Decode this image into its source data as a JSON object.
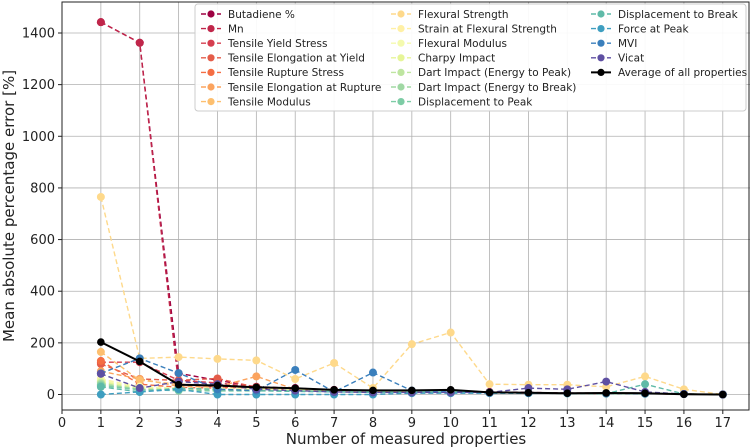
{
  "chart_data": {
    "type": "line",
    "title": "",
    "xlabel": "Number of measured properties",
    "ylabel": "Mean absolute percentage error [%]",
    "xlim": [
      0,
      17.7
    ],
    "ylim": [
      -60,
      1520
    ],
    "xticks": [
      0,
      1,
      2,
      3,
      4,
      5,
      6,
      7,
      8,
      9,
      10,
      11,
      12,
      13,
      14,
      15,
      16,
      17
    ],
    "yticks": [
      0,
      200,
      400,
      600,
      800,
      1000,
      1200,
      1400
    ],
    "grid": true,
    "legend_position": "top-right",
    "x": [
      1,
      2,
      3,
      4,
      5,
      6,
      7,
      8,
      9,
      10,
      11,
      12,
      13,
      14,
      15,
      16,
      17
    ],
    "series": [
      {
        "name": "Butadiene %",
        "color": "#9e0142",
        "values": [
          1442,
          1362,
          82,
          55,
          30,
          25,
          18,
          15,
          14,
          14,
          10,
          8,
          6,
          5,
          4,
          2,
          0
        ]
      },
      {
        "name": "Mn",
        "color": "#c0264a",
        "values": [
          1442,
          1362,
          40,
          30,
          25,
          20,
          15,
          12,
          10,
          10,
          8,
          6,
          5,
          4,
          3,
          2,
          0
        ]
      },
      {
        "name": "Tensile Yield Stress",
        "color": "#d53e4f",
        "values": [
          125,
          125,
          55,
          45,
          28,
          22,
          15,
          12,
          10,
          10,
          8,
          6,
          5,
          4,
          3,
          2,
          0
        ]
      },
      {
        "name": "Tensile Elongation at Yield",
        "color": "#e45c49",
        "values": [
          118,
          60,
          55,
          62,
          28,
          22,
          15,
          12,
          10,
          10,
          8,
          6,
          5,
          4,
          3,
          2,
          0
        ]
      },
      {
        "name": "Tensile Rupture Stress",
        "color": "#f46d43",
        "values": [
          130,
          40,
          28,
          25,
          28,
          20,
          15,
          12,
          10,
          10,
          8,
          6,
          5,
          4,
          3,
          2,
          0
        ]
      },
      {
        "name": "Tensile Elongation at Rupture",
        "color": "#fba35e",
        "values": [
          90,
          60,
          32,
          30,
          70,
          20,
          15,
          12,
          10,
          10,
          8,
          6,
          5,
          4,
          3,
          2,
          0
        ]
      },
      {
        "name": "Tensile Modulus",
        "color": "#fdbf6f",
        "values": [
          165,
          55,
          40,
          35,
          25,
          20,
          15,
          12,
          10,
          10,
          8,
          6,
          5,
          4,
          3,
          2,
          0
        ]
      },
      {
        "name": "Flexural Strength",
        "color": "#fed98b",
        "values": [
          765,
          140,
          145,
          138,
          132,
          60,
          122,
          25,
          195,
          240,
          40,
          38,
          38,
          30,
          70,
          20,
          0
        ]
      },
      {
        "name": "Strain at Flexural Strength",
        "color": "#fff0a5",
        "values": [
          60,
          30,
          25,
          25,
          22,
          20,
          15,
          12,
          10,
          10,
          8,
          6,
          5,
          4,
          3,
          2,
          0
        ]
      },
      {
        "name": "Flexural Modulus",
        "color": "#f4faae",
        "values": [
          55,
          30,
          25,
          22,
          20,
          18,
          15,
          12,
          10,
          10,
          8,
          6,
          5,
          4,
          3,
          2,
          0
        ]
      },
      {
        "name": "Charpy Impact",
        "color": "#e6f598",
        "values": [
          50,
          25,
          20,
          20,
          18,
          16,
          14,
          12,
          10,
          10,
          8,
          6,
          5,
          4,
          3,
          2,
          0
        ]
      },
      {
        "name": "Dart Impact (Energy to Peak)",
        "color": "#bee5a0",
        "values": [
          45,
          20,
          18,
          18,
          16,
          15,
          13,
          11,
          10,
          10,
          8,
          6,
          5,
          4,
          3,
          2,
          0
        ]
      },
      {
        "name": "Dart Impact (Energy to Break)",
        "color": "#a0d8a4",
        "values": [
          40,
          20,
          18,
          15,
          15,
          14,
          12,
          10,
          10,
          10,
          8,
          6,
          5,
          4,
          3,
          2,
          0
        ]
      },
      {
        "name": "Displacement to Peak",
        "color": "#7dcca5",
        "values": [
          35,
          18,
          15,
          14,
          14,
          13,
          12,
          10,
          10,
          10,
          8,
          6,
          5,
          4,
          3,
          2,
          0
        ]
      },
      {
        "name": "Displacement to Break",
        "color": "#5fbaa8",
        "values": [
          30,
          10,
          25,
          20,
          15,
          12,
          10,
          8,
          8,
          8,
          6,
          5,
          4,
          3,
          40,
          2,
          0
        ]
      },
      {
        "name": "Force at Peak",
        "color": "#3e9ec0",
        "values": [
          0,
          10,
          20,
          0,
          0,
          0,
          0,
          0,
          5,
          5,
          5,
          5,
          5,
          5,
          5,
          2,
          0
        ]
      },
      {
        "name": "MVI",
        "color": "#3a7fbc",
        "values": [
          82,
          140,
          83,
          20,
          15,
          95,
          10,
          85,
          15,
          10,
          8,
          6,
          5,
          4,
          3,
          2,
          0
        ]
      },
      {
        "name": "Vicat",
        "color": "#5e4fa2",
        "values": [
          80,
          25,
          50,
          40,
          20,
          15,
          10,
          8,
          8,
          8,
          8,
          25,
          20,
          50,
          10,
          2,
          0
        ]
      },
      {
        "name": "Average of all properties",
        "color": "#000000",
        "values": [
          203,
          128,
          38,
          35,
          28,
          24,
          18,
          16,
          16,
          18,
          8,
          7,
          5,
          6,
          5,
          1,
          0
        ]
      }
    ]
  }
}
